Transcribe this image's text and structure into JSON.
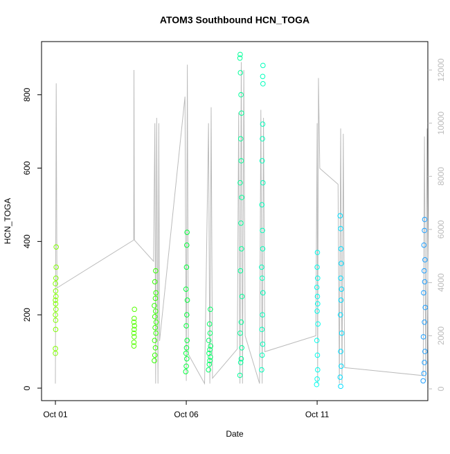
{
  "chart_data": {
    "type": "scatter",
    "title": "ATOM3 Southbound HCN_TOGA",
    "xlabel": "Date",
    "ylabel": "HCN_TOGA",
    "xlim": [
      -0.53,
      14.23
    ],
    "ylim": [
      -34,
      945
    ],
    "y2lim": [
      -443,
      13070
    ],
    "xticks": [
      {
        "value": 0,
        "label": "Oct 01"
      },
      {
        "value": 5,
        "label": "Oct 06"
      },
      {
        "value": 10,
        "label": "Oct 11"
      }
    ],
    "yticks": [
      0,
      200,
      400,
      600,
      800
    ],
    "y2ticks": [
      0,
      2000,
      4000,
      6000,
      8000,
      10000,
      12000
    ],
    "series": [
      {
        "color": "#80ff00",
        "x": [
          0,
          0,
          0.01,
          0.01,
          0,
          0.02,
          0.01,
          0,
          0.02,
          0.01,
          0,
          0.02,
          0.03,
          0.03
        ],
        "values": [
          95,
          108,
          160,
          185,
          200,
          215,
          230,
          240,
          250,
          265,
          285,
          300,
          330,
          385
        ]
      },
      {
        "color": "#55ff00",
        "x": [
          3.0,
          3.0,
          3.01,
          3.0,
          3.01,
          3.02,
          3.0,
          3.01,
          3.02
        ],
        "values": [
          115,
          125,
          140,
          150,
          160,
          170,
          180,
          190,
          215
        ]
      },
      {
        "color": "#33ff00",
        "x": [
          3.78,
          3.8,
          3.82,
          3.79,
          3.84,
          3.81,
          3.85,
          3.8,
          3.83,
          3.78,
          3.82,
          3.84,
          3.8,
          3.83
        ],
        "values": [
          75,
          90,
          110,
          130,
          150,
          165,
          180,
          195,
          210,
          225,
          245,
          260,
          290,
          320
        ]
      },
      {
        "color": "#00ff3a",
        "x": [
          4.98,
          5.0,
          5.02,
          4.99,
          5.01,
          5.03,
          5.0,
          5.02,
          5.04,
          4.99,
          5.01,
          5.02,
          5.03
        ],
        "values": [
          45,
          60,
          80,
          95,
          110,
          130,
          170,
          200,
          240,
          270,
          330,
          390,
          425
        ]
      },
      {
        "color": "#00ff66",
        "x": [
          5.85,
          5.88,
          5.9,
          5.92,
          5.87,
          5.9,
          5.93,
          5.86,
          5.91,
          5.89,
          5.92
        ],
        "values": [
          50,
          65,
          75,
          85,
          95,
          105,
          115,
          130,
          150,
          175,
          215
        ]
      },
      {
        "color": "#00ff99",
        "x": [
          7.05,
          7.08,
          7.1,
          7.12,
          7.06,
          7.1,
          7.13,
          7.07,
          7.11,
          7.09,
          7.12,
          7.06,
          7.1,
          7.08,
          7.11,
          7.09,
          7.07,
          7.05,
          7.06
        ],
        "values": [
          35,
          70,
          80,
          110,
          150,
          180,
          250,
          320,
          380,
          450,
          520,
          560,
          620,
          680,
          750,
          800,
          860,
          900,
          910
        ]
      },
      {
        "color": "#00ffbb",
        "x": [
          7.88,
          7.9,
          7.92,
          7.89,
          7.91,
          7.93,
          7.9,
          7.88,
          7.92,
          7.91,
          7.89,
          7.93,
          7.9,
          7.91,
          7.92,
          7.93,
          7.92,
          7.93
        ],
        "values": [
          50,
          90,
          120,
          160,
          200,
          260,
          300,
          330,
          380,
          430,
          500,
          560,
          620,
          680,
          720,
          830,
          850,
          880
        ]
      },
      {
        "color": "#00ffee",
        "x": [
          9.98,
          10.0,
          10.02,
          10.01,
          9.99,
          10.03,
          10.0,
          10.02,
          10.01,
          9.99,
          10.02,
          10.0,
          10.01
        ],
        "values": [
          10,
          25,
          50,
          90,
          130,
          175,
          210,
          230,
          250,
          275,
          300,
          330,
          370
        ]
      },
      {
        "color": "#00ddff",
        "x": [
          10.9,
          10.88,
          10.92,
          10.9,
          10.94,
          10.89,
          10.91,
          10.93,
          10.9,
          10.92,
          10.91,
          10.9,
          10.88
        ],
        "values": [
          5,
          30,
          60,
          100,
          150,
          200,
          240,
          270,
          300,
          340,
          380,
          435,
          470
        ]
      },
      {
        "color": "#1e9fff",
        "x": [
          14.05,
          14.08,
          14.1,
          14.12,
          14.06,
          14.1,
          14.13,
          14.07,
          14.11,
          14.09,
          14.12,
          14.08,
          14.1,
          14.11
        ],
        "values": [
          20,
          40,
          70,
          100,
          140,
          180,
          220,
          260,
          290,
          320,
          350,
          390,
          430,
          460
        ]
      }
    ],
    "altitude": {
      "color": "#bbbbbb",
      "axis": "y2",
      "x": [
        0,
        0.03,
        0.06,
        2.99,
        3.0,
        3.02,
        3.75,
        3.8,
        3.83,
        3.87,
        3.92,
        3.95,
        3.98,
        4.95,
        5.0,
        5.04,
        5.08,
        5.7,
        5.85,
        5.9,
        5.95,
        6.0,
        6.95,
        7.0,
        7.05,
        7.1,
        7.15,
        7.2,
        7.25,
        7.8,
        7.85,
        7.9,
        7.95,
        8.0,
        9.95,
        10.0,
        10.02,
        10.05,
        10.1,
        10.8,
        10.85,
        10.9,
        10.95,
        11.0,
        11.05,
        14.05,
        14.1,
        14.15,
        14.2,
        14.25
      ],
      "values": [
        200,
        11500,
        3800,
        5600,
        12000,
        5600,
        4800,
        10000,
        200,
        10200,
        200,
        10000,
        1800,
        11000,
        300,
        12200,
        1300,
        200,
        10000,
        200,
        10600,
        400,
        1500,
        10400,
        200,
        12300,
        200,
        12000,
        2000,
        200,
        10500,
        200,
        10200,
        1400,
        2000,
        10000,
        200,
        11700,
        8300,
        7700,
        200,
        9800,
        200,
        9600,
        800,
        500,
        9500,
        300,
        9800,
        200
      ]
    }
  }
}
